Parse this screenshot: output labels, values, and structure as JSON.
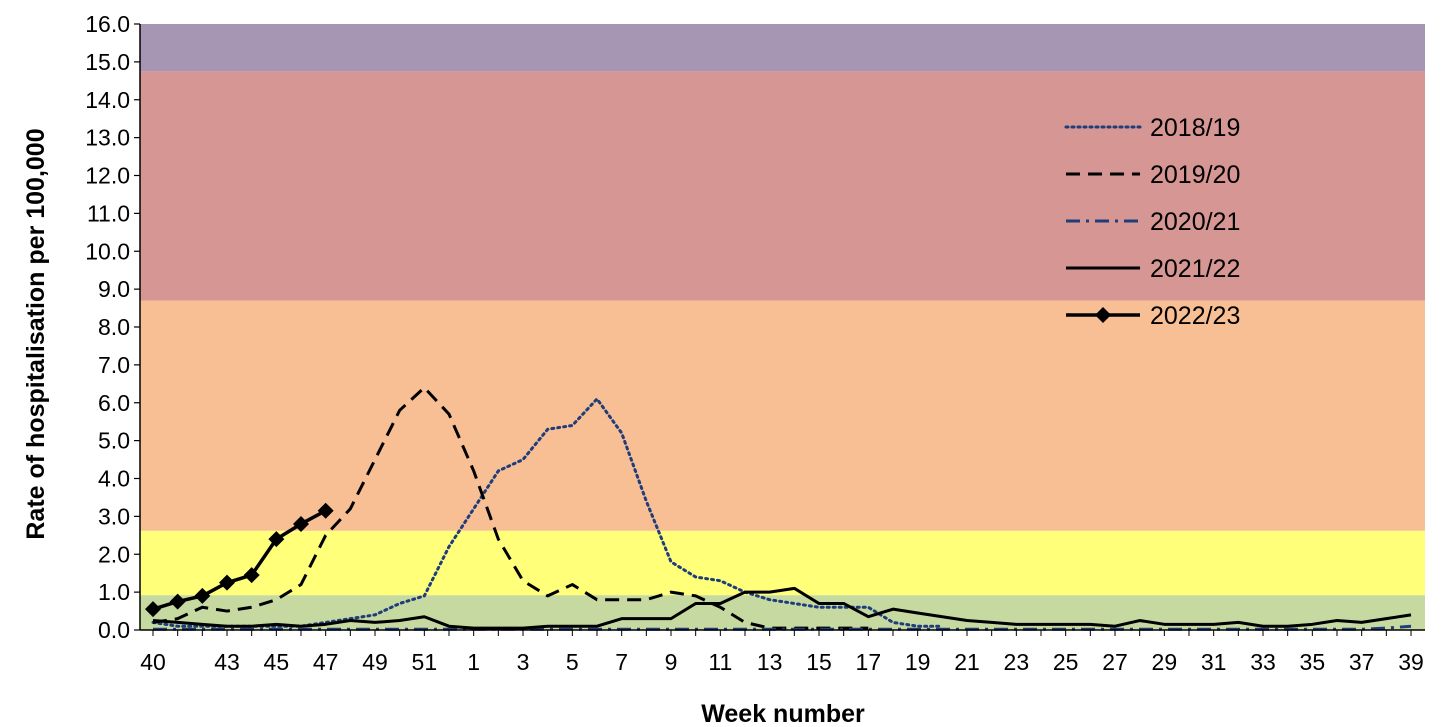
{
  "chart_data": {
    "type": "line",
    "xlabel": "Week number",
    "ylabel": "Rate of hospitalisation per 100,000",
    "ylim": [
      0,
      16
    ],
    "y_ticks": [
      "0.0",
      "1.0",
      "2.0",
      "3.0",
      "4.0",
      "5.0",
      "6.0",
      "7.0",
      "8.0",
      "9.0",
      "10.0",
      "11.0",
      "12.0",
      "13.0",
      "14.0",
      "15.0",
      "16.0"
    ],
    "x": [
      40,
      41,
      42,
      43,
      44,
      45,
      46,
      47,
      48,
      49,
      50,
      51,
      52,
      1,
      2,
      3,
      4,
      5,
      6,
      7,
      8,
      9,
      10,
      11,
      12,
      13,
      14,
      15,
      16,
      17,
      18,
      19,
      20,
      21,
      22,
      23,
      24,
      25,
      26,
      27,
      28,
      29,
      30,
      31,
      32,
      33,
      34,
      35,
      36,
      37,
      38,
      39
    ],
    "x_tick_labels": [
      "40",
      "43",
      "45",
      "47",
      "49",
      "51",
      "1",
      "3",
      "5",
      "7",
      "9",
      "11",
      "13",
      "15",
      "17",
      "19",
      "21",
      "23",
      "25",
      "27",
      "29",
      "31",
      "33",
      "35",
      "37",
      "39"
    ],
    "bands": [
      {
        "from": 0,
        "to": 0.92,
        "color": "#c6d9a0"
      },
      {
        "from": 0.92,
        "to": 2.62,
        "color": "#ffff7a"
      },
      {
        "from": 2.62,
        "to": 8.7,
        "color": "#f8bf94"
      },
      {
        "from": 8.7,
        "to": 14.75,
        "color": "#d69694"
      },
      {
        "from": 14.75,
        "to": 16,
        "color": "#a696b4"
      }
    ],
    "grid": false,
    "legend_position": "top-right",
    "series": [
      {
        "name": "2018/19",
        "style": "dotted",
        "color": "#1f3d7a",
        "values": [
          0.2,
          0.1,
          0.1,
          0.1,
          0.1,
          0.1,
          0.1,
          0.2,
          0.3,
          0.4,
          0.7,
          0.9,
          2.2,
          3.2,
          4.2,
          4.5,
          5.3,
          5.4,
          6.1,
          5.2,
          3.4,
          1.8,
          1.4,
          1.3,
          1.0,
          0.8,
          0.7,
          0.6,
          0.6,
          0.6,
          0.2,
          0.1,
          0.1,
          null,
          null,
          null,
          null,
          null,
          null,
          null,
          null,
          null,
          null,
          null,
          null,
          null,
          null,
          null,
          null,
          null,
          null,
          null
        ]
      },
      {
        "name": "2019/20",
        "style": "dashed",
        "color": "#000000",
        "values": [
          0.2,
          0.3,
          0.6,
          0.5,
          0.6,
          0.8,
          1.2,
          2.5,
          3.2,
          4.5,
          5.8,
          6.4,
          5.7,
          4.2,
          2.4,
          1.3,
          0.9,
          1.2,
          0.8,
          0.8,
          0.8,
          1.0,
          0.9,
          0.6,
          0.2,
          0.05,
          0.05,
          0.05,
          0.05,
          0.05,
          null,
          null,
          null,
          null,
          null,
          null,
          null,
          null,
          null,
          null,
          null,
          null,
          null,
          null,
          null,
          null,
          null,
          null,
          null,
          null,
          null,
          null
        ]
      },
      {
        "name": "2020/21",
        "style": "dashdot",
        "color": "#1f3d7a",
        "values": [
          0.02,
          0.02,
          0.02,
          0.02,
          0.02,
          0.02,
          0.02,
          0.02,
          0.02,
          0.02,
          0.02,
          0.02,
          0.02,
          0.02,
          0.02,
          0.02,
          0.02,
          0.02,
          0.02,
          0.02,
          0.02,
          0.02,
          0.02,
          0.02,
          0.02,
          0.02,
          0.02,
          0.02,
          0.02,
          0.02,
          0.02,
          0.02,
          0.02,
          0.02,
          0.02,
          0.02,
          0.02,
          0.02,
          0.02,
          0.02,
          0.02,
          0.02,
          0.02,
          0.02,
          0.02,
          0.02,
          0.02,
          0.02,
          0.02,
          0.02,
          0.05,
          0.1
        ]
      },
      {
        "name": "2021/22",
        "style": "solid",
        "color": "#000000",
        "values": [
          0.25,
          0.2,
          0.15,
          0.1,
          0.1,
          0.15,
          0.1,
          0.15,
          0.25,
          0.2,
          0.25,
          0.35,
          0.1,
          0.05,
          0.05,
          0.05,
          0.1,
          0.1,
          0.1,
          0.3,
          0.3,
          0.3,
          0.7,
          0.7,
          1.0,
          1.0,
          1.1,
          0.7,
          0.7,
          0.35,
          0.55,
          0.45,
          0.35,
          0.25,
          0.2,
          0.15,
          0.15,
          0.15,
          0.15,
          0.1,
          0.25,
          0.15,
          0.15,
          0.15,
          0.2,
          0.1,
          0.1,
          0.15,
          0.25,
          0.2,
          0.3,
          0.4
        ]
      },
      {
        "name": "2022/23",
        "style": "solid-diamond",
        "color": "#000000",
        "values": [
          0.55,
          0.75,
          0.9,
          1.25,
          1.45,
          2.4,
          2.8,
          3.15,
          null,
          null,
          null,
          null,
          null,
          null,
          null,
          null,
          null,
          null,
          null,
          null,
          null,
          null,
          null,
          null,
          null,
          null,
          null,
          null,
          null,
          null,
          null,
          null,
          null,
          null,
          null,
          null,
          null,
          null,
          null,
          null,
          null,
          null,
          null,
          null,
          null,
          null,
          null,
          null,
          null,
          null,
          null,
          null
        ]
      }
    ]
  }
}
